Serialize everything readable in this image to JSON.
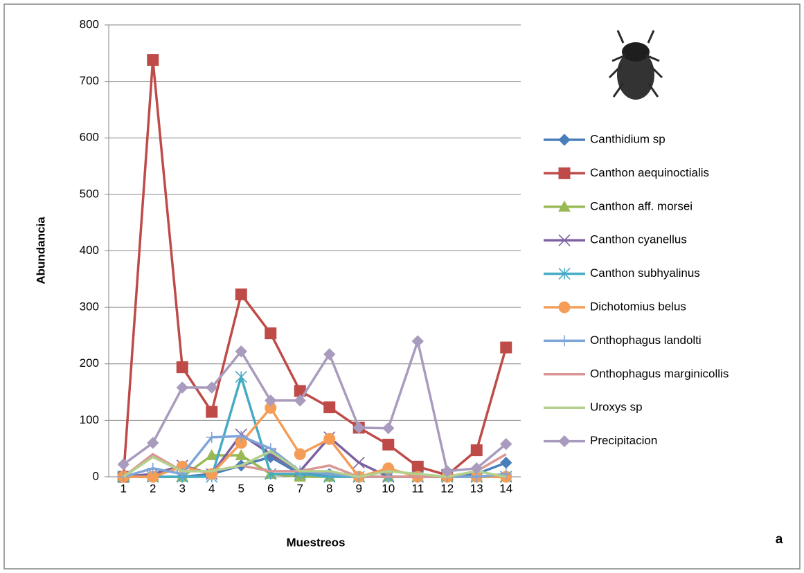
{
  "chart_data": {
    "type": "line",
    "categories": [
      "1",
      "2",
      "3",
      "4",
      "5",
      "6",
      "7",
      "8",
      "9",
      "10",
      "11",
      "12",
      "13",
      "14"
    ],
    "y_label": "Abundancia",
    "x_label": "Muestreos",
    "annotation": "a",
    "ylim": [
      0,
      800
    ],
    "yticks": [
      0,
      100,
      200,
      300,
      400,
      500,
      600,
      700,
      800
    ],
    "grid": true,
    "legend": "right",
    "series": [
      {
        "name": "Canthidium sp",
        "color": "#4a7ebb",
        "marker": "diamond",
        "values": [
          0,
          0,
          0,
          5,
          20,
          35,
          5,
          5,
          0,
          0,
          0,
          0,
          5,
          25
        ]
      },
      {
        "name": "Canthon aequinoctialis",
        "color": "#be4b48",
        "marker": "square",
        "values": [
          0,
          738,
          194,
          115,
          323,
          254,
          152,
          123,
          87,
          57,
          18,
          3,
          47,
          229
        ]
      },
      {
        "name": "Canthon aff. morsei",
        "color": "#98b954",
        "marker": "triangle",
        "values": [
          0,
          0,
          0,
          38,
          38,
          5,
          0,
          0,
          0,
          0,
          0,
          0,
          0,
          0
        ]
      },
      {
        "name": "Canthon cyanellus",
        "color": "#7d60a0",
        "marker": "x",
        "values": [
          0,
          5,
          20,
          5,
          75,
          40,
          10,
          70,
          25,
          0,
          0,
          0,
          0,
          0
        ]
      },
      {
        "name": "Canthon subhyalinus",
        "color": "#46aac5",
        "marker": "star",
        "values": [
          0,
          0,
          0,
          0,
          177,
          5,
          5,
          0,
          0,
          0,
          0,
          0,
          0,
          0
        ]
      },
      {
        "name": "Dichotomius belus",
        "color": "#f59d56",
        "marker": "circle",
        "values": [
          0,
          0,
          18,
          5,
          60,
          122,
          40,
          67,
          0,
          15,
          0,
          0,
          0,
          0
        ]
      },
      {
        "name": "Onthophagus landolti",
        "color": "#7ea4d8",
        "marker": "plus",
        "values": [
          0,
          15,
          5,
          70,
          72,
          50,
          10,
          5,
          0,
          0,
          0,
          0,
          0,
          5
        ]
      },
      {
        "name": "Onthophagus marginicollis",
        "color": "#d99694",
        "marker": "none",
        "values": [
          0,
          40,
          10,
          10,
          20,
          10,
          10,
          20,
          0,
          0,
          0,
          0,
          10,
          40
        ]
      },
      {
        "name": "Uroxys sp",
        "color": "#b3d08d",
        "marker": "none",
        "values": [
          0,
          35,
          10,
          10,
          20,
          45,
          10,
          10,
          0,
          10,
          5,
          0,
          10,
          0
        ]
      },
      {
        "name": "Precipitacion",
        "color": "#a99bbd",
        "marker": "diamond",
        "values": [
          22,
          60,
          158,
          158,
          222,
          135,
          135,
          217,
          87,
          86,
          240,
          10,
          15,
          58
        ]
      }
    ]
  }
}
